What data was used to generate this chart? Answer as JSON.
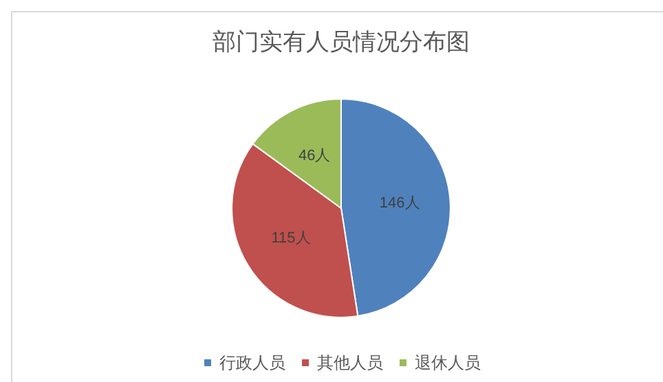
{
  "chart_data": {
    "type": "pie",
    "title": "部门实有人员情况分布图",
    "categories": [
      "行政人员",
      "其他人员",
      "退休人员"
    ],
    "values": [
      146,
      115,
      46
    ],
    "colors": [
      "#4f81bd",
      "#c0504d",
      "#9bbb59"
    ],
    "value_labels": [
      "146人",
      "115人",
      "46人"
    ],
    "legend": "bottom"
  }
}
